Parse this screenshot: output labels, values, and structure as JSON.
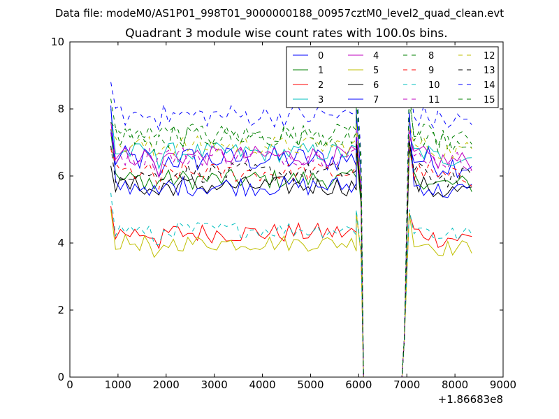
{
  "figure": {
    "suptitle": "Data file: modeM0/AS1P01_998T01_9000000188_00957cztM0_level2_quad_clean.evt"
  },
  "chart_data": {
    "type": "line",
    "title": "Quadrant 3 module wise count rates with 100.0s bins.",
    "xlabel": "",
    "ylabel": "",
    "x_offset_label": "+1.86683e8",
    "xlim": [
      0,
      9000
    ],
    "ylim": [
      0,
      10
    ],
    "xticks": [
      0,
      1000,
      2000,
      3000,
      4000,
      5000,
      6000,
      7000,
      8000,
      9000
    ],
    "xtick_labels": [
      "0",
      "1000",
      "2000",
      "3000",
      "4000",
      "5000",
      "6000",
      "7000",
      "8000",
      "9000"
    ],
    "yticks": [
      0,
      2,
      4,
      6,
      8,
      10
    ],
    "ytick_labels": [
      "0",
      "2",
      "4",
      "6",
      "8",
      "10"
    ],
    "legend_position": "top-right",
    "segment_a": {
      "x_start": 850,
      "x_end": 6050,
      "step": 100
    },
    "gap": {
      "x_start": 6050,
      "x_end": 6950,
      "low_x": [
        6100,
        6900
      ],
      "low_value": 0
    },
    "segment_b": {
      "x_start": 6950,
      "x_end": 8400,
      "step": 100
    },
    "series": [
      {
        "name": "0",
        "color": "#0000ff",
        "dash": "solid",
        "level": 6.5,
        "jitter": 0.4,
        "start_peak": 7.4,
        "gap_edge": 7.0
      },
      {
        "name": "1",
        "color": "#008000",
        "dash": "solid",
        "level": 5.9,
        "jitter": 0.3,
        "start_peak": 7.3,
        "gap_edge": 6.8
      },
      {
        "name": "2",
        "color": "#ff0000",
        "dash": "solid",
        "level": 4.3,
        "jitter": 0.3,
        "start_peak": 5.1,
        "gap_edge": 4.9
      },
      {
        "name": "3",
        "color": "#00bfbf",
        "dash": "solid",
        "level": 6.7,
        "jitter": 0.3,
        "start_peak": 8.0,
        "gap_edge": 7.2
      },
      {
        "name": "4",
        "color": "#bf00bf",
        "dash": "solid",
        "level": 6.6,
        "jitter": 0.3,
        "start_peak": 7.6,
        "gap_edge": 7.2
      },
      {
        "name": "5",
        "color": "#bfbf00",
        "dash": "solid",
        "level": 4.0,
        "jitter": 0.25,
        "start_peak": 5.0,
        "gap_edge": 4.9
      },
      {
        "name": "6",
        "color": "#000000",
        "dash": "solid",
        "level": 5.7,
        "jitter": 0.3,
        "start_peak": 6.3,
        "gap_edge": 7.1
      },
      {
        "name": "7",
        "color": "#0000ff",
        "dash": "solid",
        "level": 5.7,
        "jitter": 0.3,
        "start_peak": 8.1,
        "gap_edge": 7.9
      },
      {
        "name": "8",
        "color": "#008000",
        "dash": "dashed",
        "level": 7.2,
        "jitter": 0.35,
        "start_peak": 7.6,
        "gap_edge": 8.3
      },
      {
        "name": "9",
        "color": "#ff0000",
        "dash": "dashed",
        "level": 6.1,
        "jitter": 0.3,
        "start_peak": 6.8,
        "gap_edge": 7.0
      },
      {
        "name": "10",
        "color": "#00bfbf",
        "dash": "dashed",
        "level": 4.4,
        "jitter": 0.25,
        "start_peak": 5.5,
        "gap_edge": 5.0
      },
      {
        "name": "11",
        "color": "#bf00bf",
        "dash": "dashed",
        "level": 6.6,
        "jitter": 0.3,
        "start_peak": 7.3,
        "gap_edge": 7.4
      },
      {
        "name": "12",
        "color": "#bfbf00",
        "dash": "dashed",
        "level": 6.9,
        "jitter": 0.3,
        "start_peak": 7.4,
        "gap_edge": 7.6
      },
      {
        "name": "13",
        "color": "#000000",
        "dash": "dashed",
        "level": 6.1,
        "jitter": 0.3,
        "start_peak": 6.9,
        "gap_edge": 7.0
      },
      {
        "name": "14",
        "color": "#0000ff",
        "dash": "dashed",
        "level": 7.8,
        "jitter": 0.35,
        "start_peak": 8.8,
        "gap_edge": 8.8
      },
      {
        "name": "15",
        "color": "#008000",
        "dash": "dashed",
        "level": 7.2,
        "jitter": 0.35,
        "start_peak": 8.3,
        "gap_edge": 8.6
      }
    ]
  }
}
